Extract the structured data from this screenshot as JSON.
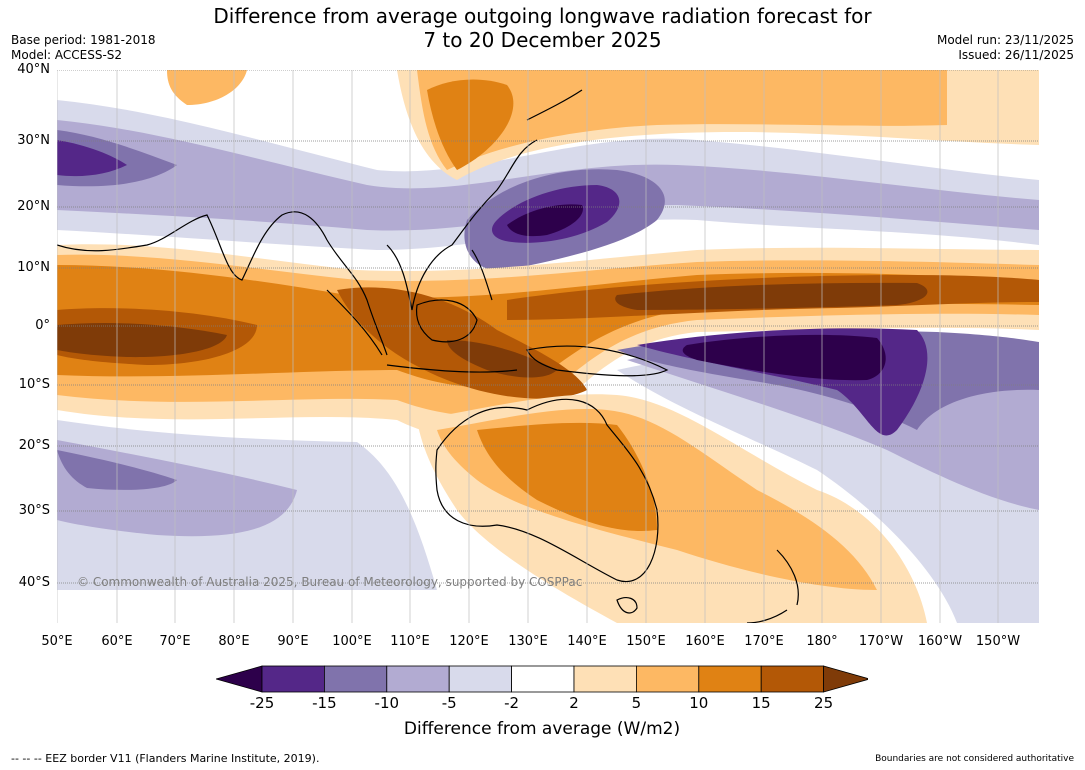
{
  "title": {
    "line1": "Difference from average outgoing longwave radiation forecast for",
    "line2": "7 to 20 December 2025"
  },
  "meta": {
    "base_period": "Base period: 1981-2018",
    "model": "Model: ACCESS-S2",
    "model_run": "Model run: 23/11/2025",
    "issued": "Issued: 26/11/2025"
  },
  "map": {
    "lat_labels": [
      "40°N",
      "30°N",
      "20°N",
      "10°N",
      "0°",
      "10°S",
      "20°S",
      "30°S",
      "40°S"
    ],
    "lon_labels": [
      "50°E",
      "60°E",
      "70°E",
      "80°E",
      "90°E",
      "100°E",
      "110°E",
      "120°E",
      "130°E",
      "140°E",
      "150°E",
      "160°E",
      "170°E",
      "180°",
      "170°W",
      "160°W",
      "150°W"
    ],
    "copyright": "© Commonwealth of Australia 2025, Bureau of Meteorology, supported by COSPPac"
  },
  "colorbar": {
    "ticks": [
      "-25",
      "-15",
      "-10",
      "-5",
      "-2",
      "2",
      "5",
      "10",
      "15",
      "25"
    ],
    "title": "Difference from average (W/m2)",
    "colors": [
      "#2d004b",
      "#542788",
      "#8073ac",
      "#b2abd2",
      "#d8daeb",
      "#ffffff",
      "#fee0b6",
      "#fdb863",
      "#e08214",
      "#b35806",
      "#7f3b08"
    ]
  },
  "footer": {
    "left": "--  --  -- EEZ border V11 (Flanders Marine Institute, 2019).",
    "right": "Boundaries are not considered authoritative"
  }
}
